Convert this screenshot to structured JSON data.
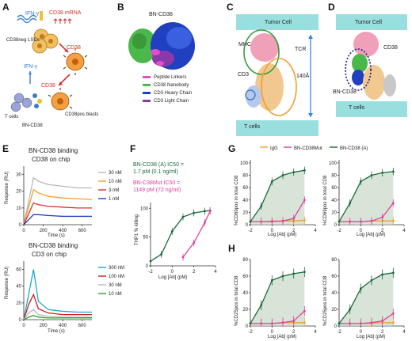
{
  "panels": {
    "A": {
      "label": "A",
      "ifn_top": "IFN-γ",
      "cd38_mrna": "CD38 mRNA",
      "lscs": "CD38neg LSCs",
      "cd38_right": "CD38",
      "ifn_left": "IFN-γ",
      "cd38_mid": "CD38",
      "tcells": "T cells",
      "bn": "BN-CD38",
      "blasts": "CD38pos blasts"
    },
    "B": {
      "label": "B",
      "title": "BN-CD38",
      "legend": [
        {
          "text": "Peptide Linkers",
          "color": "#e050c8"
        },
        {
          "text": "CD38 Nanobody",
          "color": "#4ab84a"
        },
        {
          "text": "CD3 Heavy Chain",
          "color": "#2040c0"
        },
        {
          "text": "CD3 Light Chain",
          "color": "#8a3aa8"
        }
      ]
    },
    "C": {
      "label": "C",
      "tumor": "Tumor Cell",
      "mhc": "MHC",
      "tcr": "TCR",
      "cd3": "CD3",
      "dist": "140Å",
      "tcells": "T cells"
    },
    "D": {
      "label": "D",
      "tumor": "Tumor Cell",
      "cd38": "CD38",
      "bn": "BN-CD38",
      "tcells": "T cells"
    },
    "E": {
      "label": "E",
      "charts": [
        {
          "title1": "BN-CD38 binding",
          "title2": "CD38 on chip",
          "ylabel": "Response (RU)",
          "xlabel": "Time (s)"
        },
        {
          "title1": "BN-CD38 binding",
          "title2": "CD3 on chip",
          "ylabel": "Response (RU)",
          "xlabel": "Time (s)"
        }
      ]
    },
    "F": {
      "label": "F",
      "a_text1": "BN-CD38 (A) IC50 =",
      "a_text2": "1.7 pM (0.1 ng/ml)",
      "m_text1": "BN-C38Mut IC50 =",
      "m_text2": "1149 pM (72 ng/ml)",
      "ylabel": "THP1 % killing",
      "xlabel": "Log [Ab] (pM)"
    },
    "G": {
      "label": "G",
      "legend": [
        {
          "text": "IgG",
          "color": "#f0a030"
        },
        {
          "text": "BN-CD38Mut",
          "color": "#e040a0"
        },
        {
          "text": "BN-CD38 (A)",
          "color": "#1a6a3a"
        }
      ],
      "ylabels": [
        "%CD69pos in total CD8",
        "%CD69pos in total CD8"
      ],
      "xlabel": "Log [Ab] (pM)"
    },
    "H": {
      "label": "H",
      "ylabels": [
        "%CD25pos in total CD8",
        "%CD25pos in total CD8"
      ],
      "xlabel": "Log [Ab] (pM)"
    }
  },
  "chart_data": [
    {
      "type": "line",
      "panel": "E-top",
      "x": [
        0,
        100,
        150,
        250,
        400,
        550,
        700
      ],
      "ylim": [
        0,
        35
      ],
      "xlim": [
        0,
        700
      ],
      "yticks": [
        0,
        10,
        20,
        30
      ],
      "xticks": [
        0,
        200,
        400,
        600
      ],
      "series": [
        {
          "name": "30 nM",
          "color": "#b8b8b8",
          "values": [
            0,
            28,
            26,
            24,
            23,
            22,
            22
          ]
        },
        {
          "name": "10 nM",
          "color": "#f0a030",
          "values": [
            0,
            21,
            19,
            17,
            16,
            15.5,
            15
          ]
        },
        {
          "name": "3 nM",
          "color": "#d83030",
          "values": [
            0,
            13,
            12,
            11,
            10.5,
            10,
            10
          ]
        },
        {
          "name": "1 nM",
          "color": "#2040c0",
          "values": [
            0,
            6,
            6,
            5.5,
            5,
            5,
            5
          ]
        }
      ]
    },
    {
      "type": "line",
      "panel": "E-bottom",
      "x": [
        0,
        50,
        100,
        150,
        250,
        400,
        550,
        700
      ],
      "ylim": [
        0,
        70
      ],
      "xlim": [
        0,
        700
      ],
      "yticks": [
        0,
        20,
        40,
        60
      ],
      "xticks": [
        0,
        200,
        400,
        600
      ],
      "series": [
        {
          "name": "300 nM",
          "color": "#20a8c8",
          "values": [
            0,
            30,
            60,
            22,
            12,
            10,
            9,
            9
          ]
        },
        {
          "name": "100 nM",
          "color": "#c82020",
          "values": [
            0,
            18,
            30,
            13,
            8,
            6,
            6,
            6
          ]
        },
        {
          "name": "30 nM",
          "color": "#b8b8b8",
          "values": [
            0,
            8,
            12,
            6,
            4,
            3,
            3,
            3
          ]
        },
        {
          "name": "10 nM",
          "color": "#30a030",
          "values": [
            0,
            3,
            5,
            3,
            2,
            2,
            2,
            2
          ]
        }
      ]
    },
    {
      "type": "line",
      "panel": "F",
      "x": [
        -2,
        -1,
        0,
        1,
        2,
        3,
        3.5
      ],
      "ylim": [
        0,
        110
      ],
      "xlim": [
        -2,
        4
      ],
      "yticks": [
        0,
        50,
        100
      ],
      "xticks": [
        -2,
        0,
        2,
        4
      ],
      "series": [
        {
          "name": "BN-CD38 (A)",
          "color": "#1a6a3a",
          "values": [
            8,
            20,
            60,
            85,
            92,
            95,
            96
          ]
        },
        {
          "name": "BN-C38Mut",
          "color": "#e040a0",
          "values": [
            null,
            null,
            null,
            15,
            40,
            75,
            95
          ]
        }
      ]
    },
    {
      "type": "line",
      "panel": "G-left",
      "x": [
        -2,
        -1,
        0,
        1,
        2,
        3
      ],
      "ylim": [
        0,
        105
      ],
      "xlim": [
        -2,
        4
      ],
      "yticks": [
        0,
        20,
        40,
        60,
        80,
        100
      ],
      "xticks": [
        -2,
        0,
        2,
        4
      ],
      "series": [
        {
          "name": "IgG",
          "color": "#f0a030",
          "values": [
            5,
            5,
            6,
            6,
            6,
            7
          ]
        },
        {
          "name": "BN-CD38Mut",
          "color": "#e040a0",
          "values": [
            5,
            5,
            5,
            6,
            10,
            40
          ]
        },
        {
          "name": "BN-CD38 (A)",
          "color": "#1a6a3a",
          "values": [
            5,
            30,
            70,
            80,
            85,
            88
          ]
        }
      ]
    },
    {
      "type": "line",
      "panel": "G-right",
      "x": [
        -2,
        -1,
        0,
        1,
        2,
        3
      ],
      "ylim": [
        0,
        105
      ],
      "xlim": [
        -2,
        4
      ],
      "yticks": [
        0,
        20,
        40,
        60,
        80,
        100
      ],
      "xticks": [
        -2,
        0,
        2,
        4
      ],
      "series": [
        {
          "name": "IgG",
          "color": "#f0a030",
          "values": [
            5,
            5,
            5,
            6,
            6,
            6
          ]
        },
        {
          "name": "BN-CD38Mut",
          "color": "#e040a0",
          "values": [
            5,
            5,
            5,
            6,
            12,
            35
          ]
        },
        {
          "name": "BN-CD38 (A)",
          "color": "#1a6a3a",
          "values": [
            5,
            35,
            70,
            80,
            84,
            86
          ]
        }
      ]
    },
    {
      "type": "line",
      "panel": "H-left",
      "x": [
        -2,
        -1,
        0,
        1,
        2,
        3
      ],
      "ylim": [
        0,
        80
      ],
      "xlim": [
        -2,
        4
      ],
      "yticks": [
        0,
        20,
        40,
        60,
        80
      ],
      "xticks": [
        -2,
        0,
        2,
        4
      ],
      "series": [
        {
          "name": "IgG",
          "color": "#f0a030",
          "values": [
            3,
            3,
            3,
            4,
            4,
            4
          ]
        },
        {
          "name": "BN-CD38Mut",
          "color": "#e040a0",
          "values": [
            3,
            3,
            3,
            4,
            6,
            18
          ]
        },
        {
          "name": "BN-CD38 (A)",
          "color": "#1a6a3a",
          "values": [
            3,
            25,
            55,
            60,
            63,
            65
          ]
        }
      ]
    },
    {
      "type": "line",
      "panel": "H-right",
      "x": [
        -2,
        -1,
        0,
        1,
        2,
        3
      ],
      "ylim": [
        0,
        80
      ],
      "xlim": [
        -2,
        4
      ],
      "yticks": [
        0,
        20,
        40,
        60,
        80
      ],
      "xticks": [
        -2,
        0,
        2,
        4
      ],
      "series": [
        {
          "name": "IgG",
          "color": "#f0a030",
          "values": [
            3,
            3,
            3,
            3,
            4,
            4
          ]
        },
        {
          "name": "BN-CD38Mut",
          "color": "#e040a0",
          "values": [
            3,
            3,
            3,
            4,
            6,
            15
          ]
        },
        {
          "name": "BN-CD38 (A)",
          "color": "#1a6a3a",
          "values": [
            3,
            20,
            45,
            55,
            62,
            64
          ]
        }
      ]
    }
  ]
}
